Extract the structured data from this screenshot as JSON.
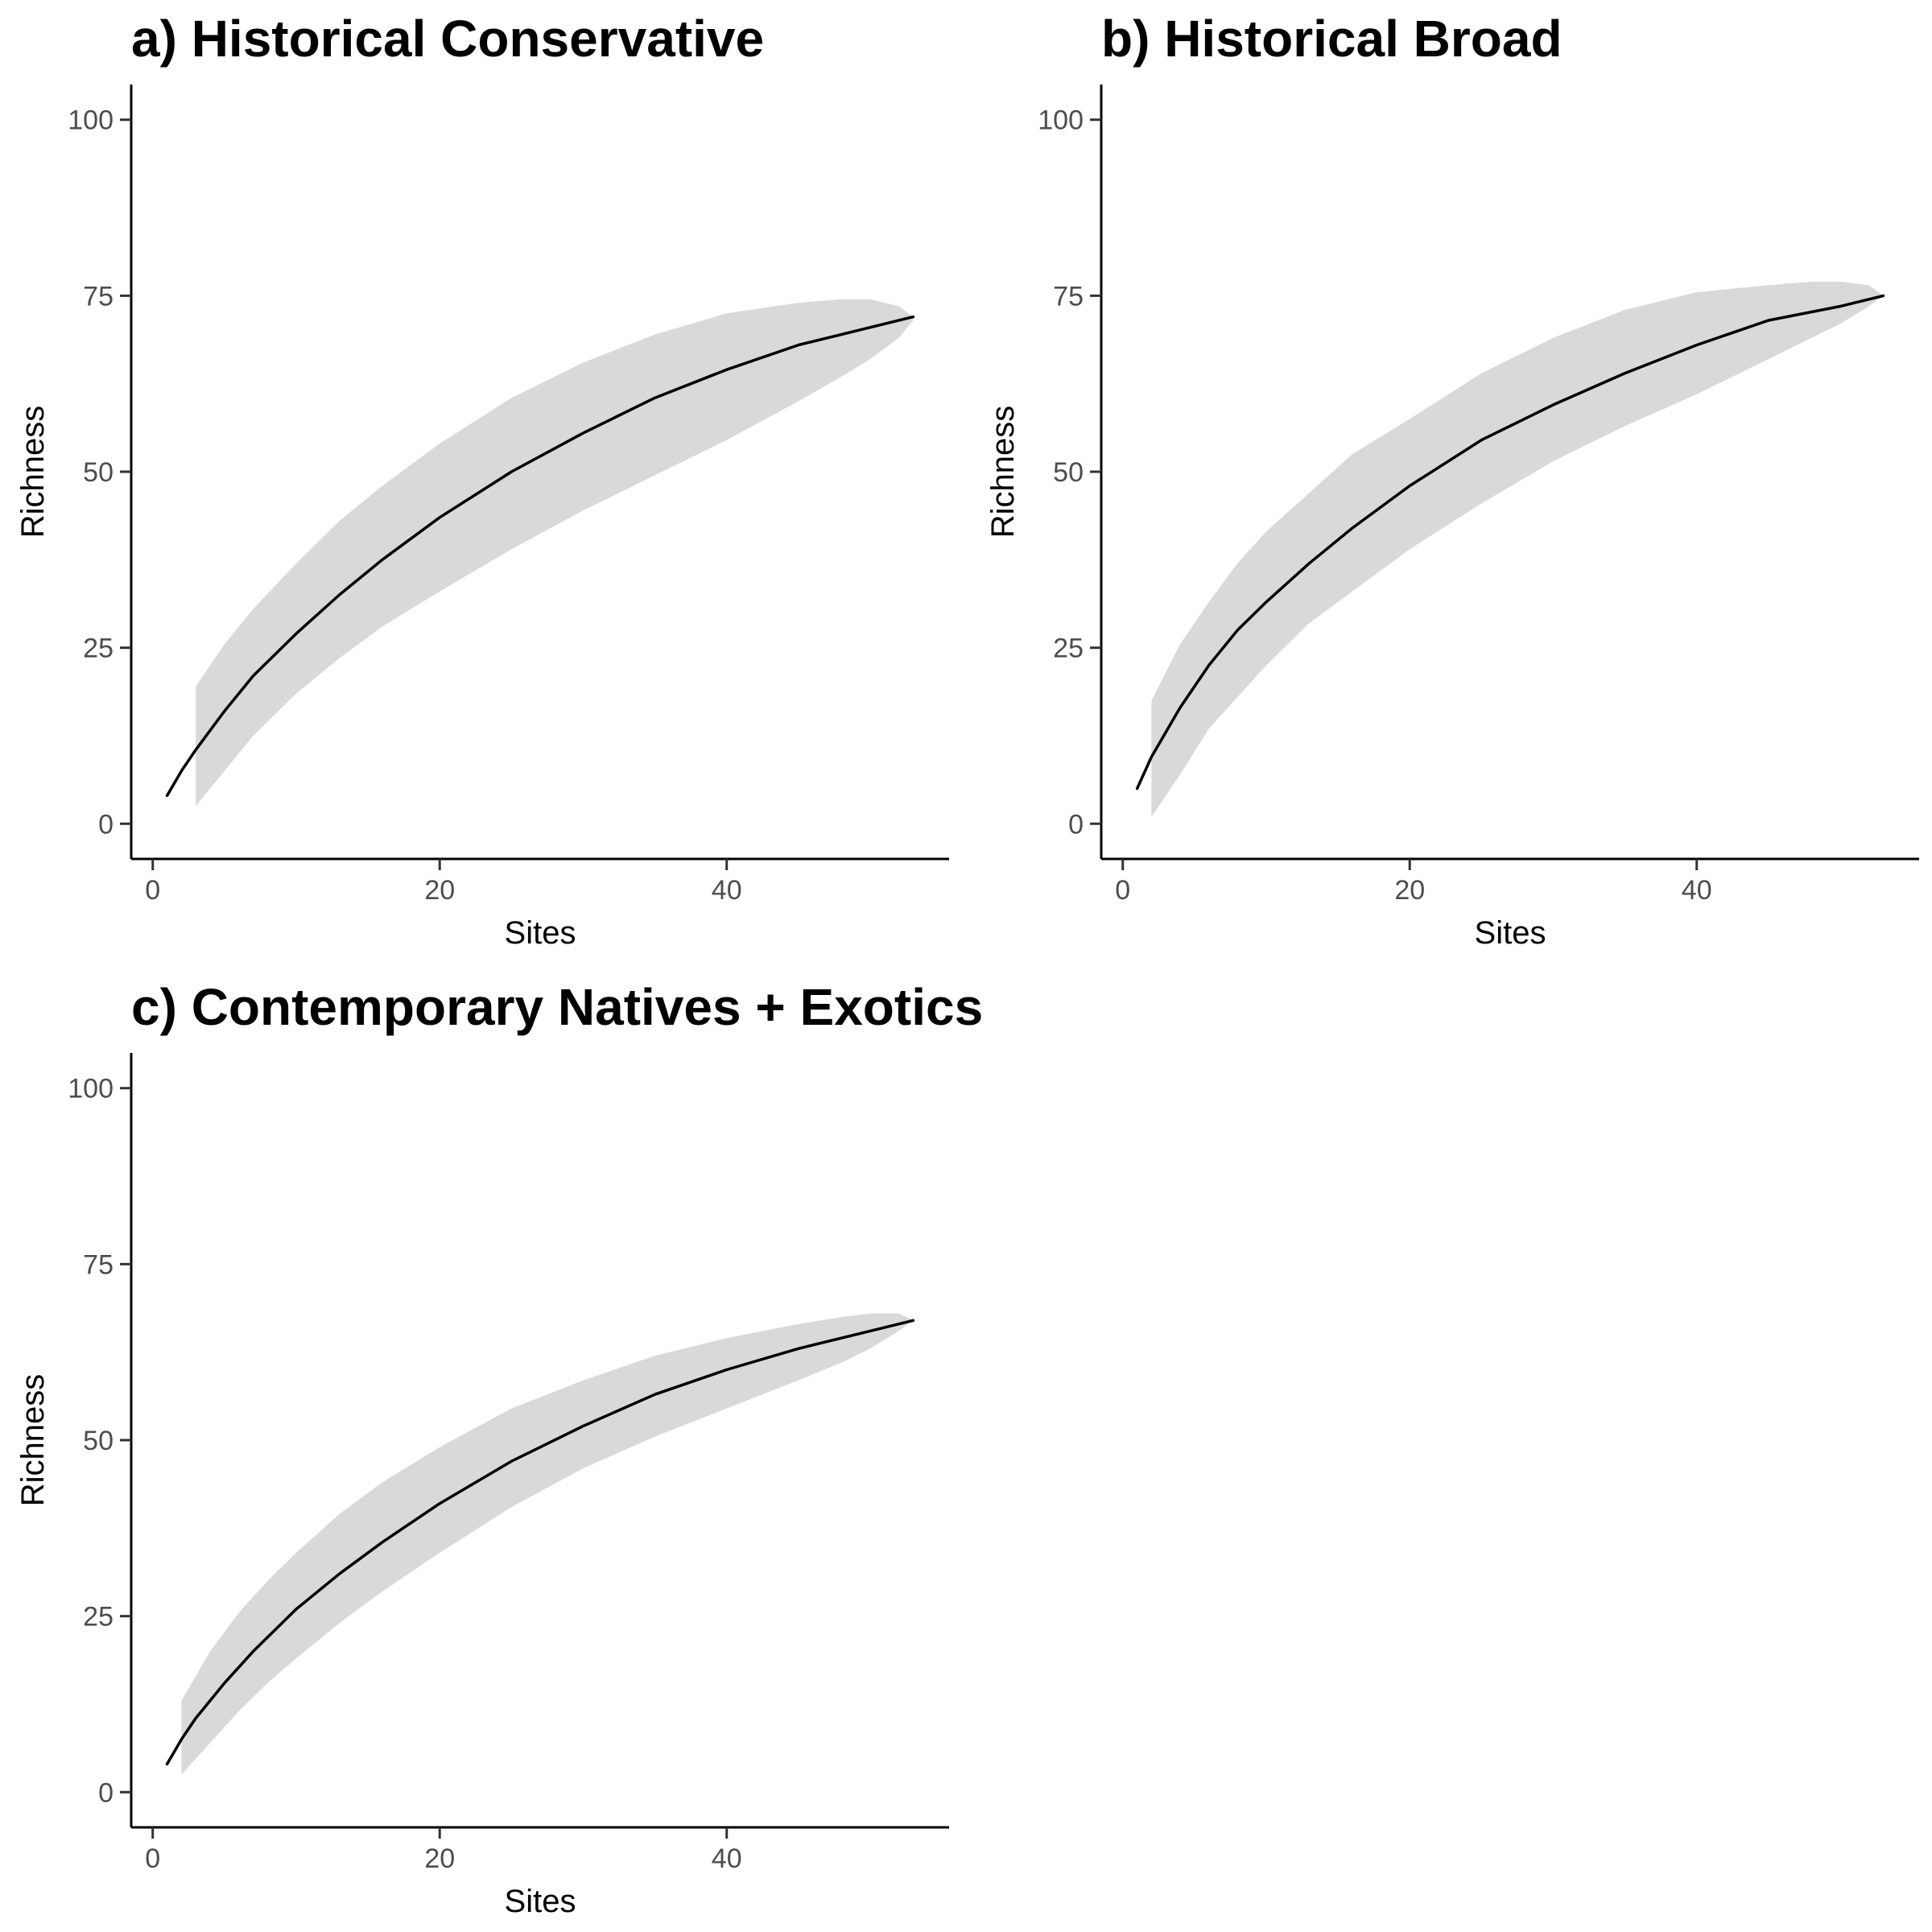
{
  "colors": {
    "band": "#d9d9d9",
    "line": "#000000",
    "axis": "#000000"
  },
  "chart_data": [
    {
      "type": "area",
      "title": "a) Historical Conservative",
      "xlabel": "Sites",
      "ylabel": "Richness",
      "xlim": [
        -1.5,
        55.5
      ],
      "ylim": [
        -5,
        105
      ],
      "xticks": [
        0,
        20,
        40
      ],
      "yticks": [
        0,
        25,
        50,
        75,
        100
      ],
      "grid": false,
      "legend": "none",
      "mean": {
        "x": [
          1,
          2,
          3,
          5,
          7,
          10,
          13,
          16,
          20,
          25,
          30,
          35,
          40,
          45,
          50,
          53
        ],
        "y": [
          4,
          7.5,
          10.5,
          16,
          21,
          27,
          32.5,
          37.5,
          43.5,
          50,
          55.5,
          60.5,
          64.5,
          68,
          70.5,
          72
        ]
      },
      "band": {
        "x": [
          3,
          5,
          7,
          10,
          13,
          16,
          20,
          25,
          30,
          35,
          40,
          45,
          48,
          50,
          52,
          53
        ],
        "lower": [
          2.5,
          7.5,
          12.5,
          18.5,
          23.5,
          28,
          33,
          39,
          44.5,
          49.5,
          54.5,
          60,
          63.5,
          66,
          69,
          71.5
        ],
        "upper": [
          19.5,
          25.5,
          30.5,
          37,
          43,
          48,
          54,
          60.5,
          65.5,
          69.5,
          72.5,
          74,
          74.5,
          74.5,
          73.5,
          72
        ]
      }
    },
    {
      "type": "area",
      "title": "b) Historical Broad",
      "xlabel": "Sites",
      "ylabel": "Richness",
      "xlim": [
        -1.5,
        55.5
      ],
      "ylim": [
        -5,
        105
      ],
      "xticks": [
        0,
        20,
        40
      ],
      "yticks": [
        0,
        25,
        50,
        75,
        100
      ],
      "grid": false,
      "legend": "none",
      "mean": {
        "x": [
          1,
          2,
          3,
          4,
          6,
          8,
          10,
          13,
          16,
          20,
          25,
          30,
          35,
          40,
          45,
          50,
          53
        ],
        "y": [
          5,
          9.5,
          13,
          16.5,
          22.5,
          27.5,
          31.5,
          37,
          42,
          48,
          54.5,
          59.5,
          64,
          68,
          71.5,
          73.5,
          75
        ]
      },
      "band": {
        "x": [
          2,
          4,
          6,
          8,
          10,
          13,
          16,
          20,
          25,
          30,
          35,
          40,
          45,
          48,
          50,
          52,
          53
        ],
        "lower": [
          1,
          7,
          13.5,
          18,
          22.5,
          28.5,
          33,
          39,
          45.5,
          51.5,
          56.5,
          61,
          66,
          69,
          71,
          73.5,
          75
        ],
        "upper": [
          17.5,
          25.5,
          31.5,
          37,
          41.5,
          47,
          52.5,
          57.5,
          64,
          69,
          73,
          75.5,
          76.5,
          77,
          77,
          76.5,
          75
        ]
      }
    },
    {
      "type": "area",
      "title": "c) Contemporary Natives + Exotics",
      "xlabel": "Sites",
      "ylabel": "Richness",
      "xlim": [
        -1.5,
        55.5
      ],
      "ylim": [
        -5,
        105
      ],
      "xticks": [
        0,
        20,
        40
      ],
      "yticks": [
        0,
        25,
        50,
        75,
        100
      ],
      "grid": false,
      "legend": "none",
      "mean": {
        "x": [
          1,
          2,
          3,
          5,
          7,
          10,
          13,
          16,
          20,
          25,
          30,
          35,
          40,
          45,
          50,
          53
        ],
        "y": [
          4,
          7.5,
          10.5,
          15.5,
          20,
          26,
          31,
          35.5,
          41,
          47,
          52,
          56.5,
          60,
          63,
          65.5,
          67
        ]
      },
      "band": {
        "x": [
          2,
          4,
          6,
          8,
          10,
          13,
          16,
          20,
          25,
          30,
          35,
          40,
          45,
          48,
          50,
          52,
          53
        ],
        "lower": [
          2.5,
          7,
          11.5,
          15.5,
          19,
          24,
          28.5,
          34,
          40.5,
          46,
          50.5,
          54.5,
          58.5,
          61,
          63,
          65.5,
          67
        ],
        "upper": [
          13,
          20,
          25.5,
          30,
          34,
          39.5,
          44,
          49,
          54.5,
          58.5,
          62,
          64.5,
          66.5,
          67.5,
          68,
          68,
          67
        ]
      }
    }
  ]
}
